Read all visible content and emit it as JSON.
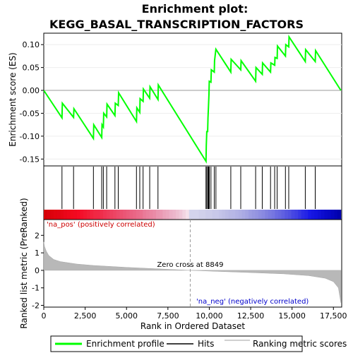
{
  "chart_data": {
    "type": "line",
    "title_line1": "Enrichment plot:",
    "title_line2": "KEGG_BASAL_TRANSCRIPTION_FACTORS",
    "xlabel": "Rank in Ordered Dataset",
    "xlim": [
      0,
      18000
    ],
    "x_ticks": [
      0,
      2500,
      5000,
      7500,
      10000,
      12500,
      15000,
      17500
    ],
    "x_tick_labels": [
      "0",
      "2,500",
      "5,000",
      "7,500",
      "10,000",
      "12,500",
      "15,000",
      "17,500"
    ],
    "es_panel": {
      "ylabel": "Enrichment score (ES)",
      "ylim": [
        -0.165,
        0.125
      ],
      "y_ticks": [
        -0.15,
        -0.1,
        -0.05,
        0.0,
        0.05,
        0.1
      ],
      "y_tick_labels": [
        "-0.15",
        "-0.10",
        "-0.05",
        "0.00",
        "0.05",
        "0.10"
      ],
      "series": [
        {
          "name": "Enrichment profile",
          "color": "#00ff00",
          "points": [
            [
              0,
              0.0
            ],
            [
              1100,
              -0.06
            ],
            [
              1120,
              -0.028
            ],
            [
              1800,
              -0.059
            ],
            [
              1820,
              -0.04
            ],
            [
              3000,
              -0.105
            ],
            [
              3020,
              -0.075
            ],
            [
              3500,
              -0.103
            ],
            [
              3520,
              -0.075
            ],
            [
              3600,
              -0.08
            ],
            [
              3620,
              -0.05
            ],
            [
              3800,
              -0.058
            ],
            [
              3820,
              -0.03
            ],
            [
              4300,
              -0.055
            ],
            [
              4320,
              -0.028
            ],
            [
              4500,
              -0.033
            ],
            [
              4520,
              -0.005
            ],
            [
              5600,
              -0.068
            ],
            [
              5620,
              -0.038
            ],
            [
              5800,
              -0.048
            ],
            [
              5820,
              -0.018
            ],
            [
              6000,
              -0.024
            ],
            [
              6020,
              0.003
            ],
            [
              6400,
              -0.017
            ],
            [
              6420,
              0.008
            ],
            [
              6900,
              -0.02
            ],
            [
              6920,
              0.012
            ],
            [
              9800,
              -0.155
            ],
            [
              9820,
              -0.12
            ],
            [
              9850,
              -0.09
            ],
            [
              9900,
              -0.09
            ],
            [
              9920,
              -0.06
            ],
            [
              9950,
              -0.035
            ],
            [
              9980,
              -0.008
            ],
            [
              10000,
              0.02
            ],
            [
              10100,
              0.018
            ],
            [
              10120,
              0.045
            ],
            [
              10300,
              0.04
            ],
            [
              10320,
              0.065
            ],
            [
              10400,
              0.09
            ],
            [
              11300,
              0.04
            ],
            [
              11320,
              0.068
            ],
            [
              11900,
              0.045
            ],
            [
              11920,
              0.065
            ],
            [
              12800,
              0.02
            ],
            [
              12820,
              0.05
            ],
            [
              13200,
              0.035
            ],
            [
              13220,
              0.06
            ],
            [
              13700,
              0.04
            ],
            [
              13720,
              0.06
            ],
            [
              13950,
              0.055
            ],
            [
              13970,
              0.072
            ],
            [
              14100,
              0.07
            ],
            [
              14120,
              0.097
            ],
            [
              14600,
              0.075
            ],
            [
              14620,
              0.1
            ],
            [
              14800,
              0.095
            ],
            [
              14820,
              0.117
            ],
            [
              15800,
              0.063
            ],
            [
              15820,
              0.089
            ],
            [
              16400,
              0.063
            ],
            [
              16420,
              0.087
            ],
            [
              17950,
              0.0
            ]
          ]
        }
      ]
    },
    "hits_panel": {
      "series_name": "Hits",
      "hit_positions": [
        1100,
        1800,
        3000,
        3500,
        3600,
        3800,
        4300,
        4500,
        5600,
        5800,
        6000,
        6400,
        6900,
        9800,
        9850,
        9920,
        9960,
        10000,
        10100,
        10300,
        10400,
        11300,
        11900,
        12800,
        13200,
        13700,
        13950,
        14100,
        14600,
        14800,
        15800,
        16400
      ]
    },
    "metric_panel": {
      "series_name": "Ranking metric scores",
      "ylabel": "Ranked list metric (PreRanked)",
      "ylim": [
        -2.1,
        2.9
      ],
      "y_ticks": [
        -2,
        -1,
        0,
        1,
        2
      ],
      "y_tick_labels": [
        "-2",
        "-1",
        "0",
        "1",
        "2"
      ],
      "zero_cross": 8849,
      "zero_cross_label": "Zero cross at 8849",
      "pos_label": "'na_pos' (positively correlated)",
      "neg_label": "'na_neg' (negatively correlated)",
      "profile": [
        [
          0,
          1.62
        ],
        [
          50,
          1.35
        ],
        [
          150,
          1.1
        ],
        [
          300,
          0.85
        ],
        [
          600,
          0.62
        ],
        [
          1000,
          0.5
        ],
        [
          2000,
          0.36
        ],
        [
          3000,
          0.28
        ],
        [
          5000,
          0.17
        ],
        [
          7000,
          0.08
        ],
        [
          8849,
          0.0
        ],
        [
          10500,
          -0.06
        ],
        [
          12500,
          -0.13
        ],
        [
          14500,
          -0.2
        ],
        [
          16000,
          -0.3
        ],
        [
          17000,
          -0.45
        ],
        [
          17500,
          -0.65
        ],
        [
          17800,
          -1.0
        ],
        [
          17950,
          -1.85
        ]
      ]
    },
    "legend": [
      {
        "label": "Enrichment profile",
        "color": "#00ff00"
      },
      {
        "label": "Hits",
        "color": "#000000"
      },
      {
        "label": "Ranking metric scores",
        "color": "#c0c0c0"
      }
    ]
  }
}
